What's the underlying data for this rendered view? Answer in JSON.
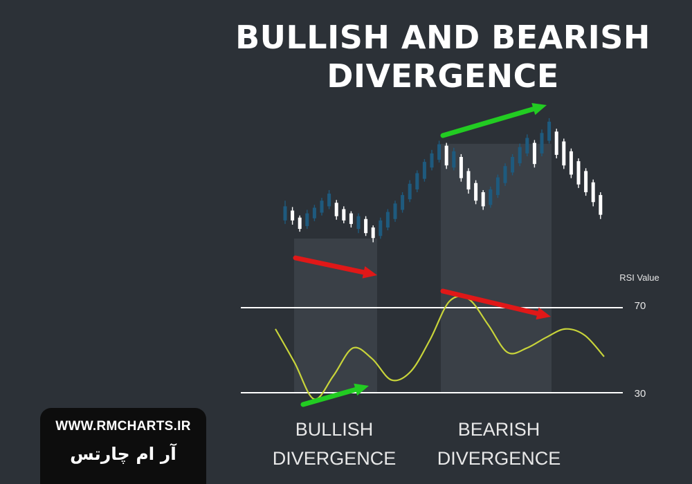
{
  "title_line1": "BULLISH AND BEARISH",
  "title_line2": "DIVERGENCE",
  "rsi_axis_label": "RSI Value",
  "level_high_label": "70",
  "level_low_label": "30",
  "bullish_label_1": "BULLISH",
  "bullish_label_2": "DIVERGENCE",
  "bearish_label_1": "BEARISH",
  "bearish_label_2": "DIVERGENCE",
  "badge": {
    "url": "WWW.RMCHARTS.IR",
    "name_fa": "آر ام چارتس"
  },
  "colors": {
    "background": "#2c3137",
    "bull_candle": "#1e5a7e",
    "bear_candle": "#ffffff",
    "rsi_line": "#c8d43a",
    "arrow_up": "#22cc22",
    "arrow_down": "#e01818",
    "region": "#3f464d"
  },
  "chart_data": {
    "type": "candlestick",
    "indicator": "RSI",
    "rsi_levels": [
      70,
      30
    ],
    "price_candles": [
      {
        "dir": "up",
        "open": 60,
        "close": 80,
        "high": 88,
        "low": 55
      },
      {
        "dir": "down",
        "open": 74,
        "close": 60,
        "high": 79,
        "low": 54
      },
      {
        "dir": "down",
        "open": 64,
        "close": 48,
        "high": 67,
        "low": 44
      },
      {
        "dir": "up",
        "open": 52,
        "close": 70,
        "high": 75,
        "low": 48
      },
      {
        "dir": "up",
        "open": 63,
        "close": 78,
        "high": 82,
        "low": 59
      },
      {
        "dir": "up",
        "open": 71,
        "close": 88,
        "high": 92,
        "low": 67
      },
      {
        "dir": "up",
        "open": 80,
        "close": 98,
        "high": 103,
        "low": 76
      },
      {
        "dir": "down",
        "open": 85,
        "close": 66,
        "high": 89,
        "low": 61
      },
      {
        "dir": "down",
        "open": 76,
        "close": 60,
        "high": 80,
        "low": 56
      },
      {
        "dir": "down",
        "open": 70,
        "close": 55,
        "high": 73,
        "low": 50
      },
      {
        "dir": "up",
        "open": 48,
        "close": 66,
        "high": 70,
        "low": 42
      },
      {
        "dir": "down",
        "open": 62,
        "close": 42,
        "high": 66,
        "low": 38
      },
      {
        "dir": "down",
        "open": 50,
        "close": 35,
        "high": 53,
        "low": 29
      },
      {
        "dir": "up",
        "open": 38,
        "close": 60,
        "high": 64,
        "low": 34
      },
      {
        "dir": "up",
        "open": 50,
        "close": 72,
        "high": 76,
        "low": 46
      },
      {
        "dir": "up",
        "open": 62,
        "close": 84,
        "high": 88,
        "low": 58
      },
      {
        "dir": "up",
        "open": 75,
        "close": 96,
        "high": 100,
        "low": 71
      },
      {
        "dir": "up",
        "open": 90,
        "close": 112,
        "high": 117,
        "low": 86
      },
      {
        "dir": "up",
        "open": 104,
        "close": 127,
        "high": 131,
        "low": 100
      },
      {
        "dir": "up",
        "open": 119,
        "close": 143,
        "high": 147,
        "low": 115
      },
      {
        "dir": "up",
        "open": 135,
        "close": 155,
        "high": 160,
        "low": 131
      },
      {
        "dir": "up",
        "open": 146,
        "close": 168,
        "high": 173,
        "low": 142
      },
      {
        "dir": "down",
        "open": 166,
        "close": 138,
        "high": 170,
        "low": 133
      },
      {
        "dir": "up",
        "open": 135,
        "close": 158,
        "high": 163,
        "low": 131
      },
      {
        "dir": "down",
        "open": 150,
        "close": 120,
        "high": 154,
        "low": 115
      },
      {
        "dir": "down",
        "open": 130,
        "close": 104,
        "high": 134,
        "low": 98
      },
      {
        "dir": "down",
        "open": 113,
        "close": 88,
        "high": 117,
        "low": 83
      },
      {
        "dir": "down",
        "open": 100,
        "close": 80,
        "high": 103,
        "low": 75
      },
      {
        "dir": "up",
        "open": 82,
        "close": 104,
        "high": 108,
        "low": 78
      },
      {
        "dir": "up",
        "open": 96,
        "close": 121,
        "high": 125,
        "low": 92
      },
      {
        "dir": "up",
        "open": 113,
        "close": 137,
        "high": 141,
        "low": 109
      },
      {
        "dir": "up",
        "open": 128,
        "close": 150,
        "high": 154,
        "low": 124
      },
      {
        "dir": "up",
        "open": 141,
        "close": 164,
        "high": 169,
        "low": 137
      },
      {
        "dir": "up",
        "open": 155,
        "close": 177,
        "high": 182,
        "low": 151
      },
      {
        "dir": "down",
        "open": 170,
        "close": 140,
        "high": 174,
        "low": 135
      },
      {
        "dir": "up",
        "open": 155,
        "close": 184,
        "high": 189,
        "low": 151
      },
      {
        "dir": "up",
        "open": 173,
        "close": 200,
        "high": 205,
        "low": 169
      },
      {
        "dir": "down",
        "open": 186,
        "close": 153,
        "high": 190,
        "low": 148
      },
      {
        "dir": "down",
        "open": 172,
        "close": 138,
        "high": 176,
        "low": 133
      },
      {
        "dir": "down",
        "open": 158,
        "close": 125,
        "high": 162,
        "low": 120
      },
      {
        "dir": "down",
        "open": 144,
        "close": 111,
        "high": 148,
        "low": 106
      },
      {
        "dir": "down",
        "open": 130,
        "close": 100,
        "high": 134,
        "low": 95
      },
      {
        "dir": "down",
        "open": 114,
        "close": 86,
        "high": 118,
        "low": 80
      },
      {
        "dir": "down",
        "open": 96,
        "close": 68,
        "high": 100,
        "low": 62
      }
    ],
    "rsi_values": [
      60,
      44,
      27,
      38,
      51,
      46,
      36,
      40,
      55,
      73,
      74,
      62,
      49,
      51,
      56,
      60,
      57,
      47
    ]
  }
}
